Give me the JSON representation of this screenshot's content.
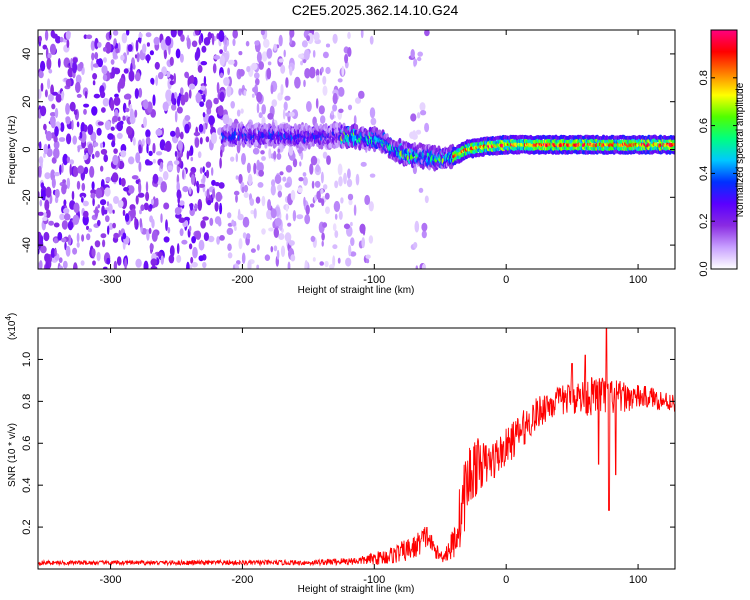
{
  "title": "C2E5.2025.362.14.10.G24",
  "chart_data": [
    {
      "type": "heatmap",
      "name": "spectrogram",
      "xlabel": "Height of straight line (km)",
      "ylabel": "Frequency (Hz)",
      "xlim": [
        -355,
        128
      ],
      "ylim": [
        -50,
        50
      ],
      "x_ticks": [
        -300,
        -200,
        -100,
        0,
        100
      ],
      "y_ticks": [
        -40,
        -20,
        0,
        20,
        40
      ],
      "colorbar": {
        "label": "Normalized spectral amplitude",
        "range": [
          0,
          1
        ],
        "ticks": [
          0.0,
          0.2,
          0.4,
          0.6,
          0.8
        ],
        "colors": [
          "#ffffff",
          "#c8a0ff",
          "#8a2be2",
          "#5a00ff",
          "#0030ff",
          "#00c8ff",
          "#00ff80",
          "#50ff00",
          "#ffff00",
          "#ff8000",
          "#ff0000",
          "#ff0080"
        ]
      },
      "ridge": [
        {
          "x": -215,
          "f": 6.0
        },
        {
          "x": -180,
          "f": 6.0
        },
        {
          "x": -150,
          "f": 5.5
        },
        {
          "x": -125,
          "f": 6.0
        },
        {
          "x": -110,
          "f": 5.0
        },
        {
          "x": -95,
          "f": 4.0
        },
        {
          "x": -85,
          "f": 0.0
        },
        {
          "x": -75,
          "f": -2.0
        },
        {
          "x": -60,
          "f": -3.0
        },
        {
          "x": -50,
          "f": -4.0
        },
        {
          "x": -40,
          "f": -3.0
        },
        {
          "x": -30,
          "f": 0.0
        },
        {
          "x": -20,
          "f": 1.0
        },
        {
          "x": 0,
          "f": 2.0
        },
        {
          "x": 40,
          "f": 2.0
        },
        {
          "x": 80,
          "f": 2.0
        },
        {
          "x": 128,
          "f": 2.0
        }
      ]
    },
    {
      "type": "line",
      "name": "snr",
      "xlabel": "Height of straight line (km)",
      "ylabel": "SNR (10 * v/v)",
      "y_scale_label": "(x10",
      "y_scale_exponent": "4",
      "y_scale_suffix": ")",
      "xlim": [
        -355,
        128
      ],
      "ylim": [
        0,
        1.15
      ],
      "x_ticks": [
        -300,
        -200,
        -100,
        0,
        100
      ],
      "y_ticks": [
        0.2,
        0.4,
        0.6,
        0.8,
        1.0
      ],
      "series": [
        {
          "name": "SNR",
          "color": "#ff0000",
          "x": [
            -355,
            -300,
            -200,
            -150,
            -110,
            -90,
            -70,
            -60,
            -55,
            -50,
            -45,
            -40,
            -35,
            -30,
            -25,
            -20,
            -15,
            -10,
            -5,
            0,
            10,
            20,
            30,
            40,
            50,
            60,
            70,
            80,
            90,
            100,
            110,
            120,
            128
          ],
          "values": [
            0.03,
            0.03,
            0.03,
            0.03,
            0.04,
            0.06,
            0.1,
            0.16,
            0.1,
            0.06,
            0.08,
            0.12,
            0.25,
            0.4,
            0.48,
            0.5,
            0.5,
            0.52,
            0.55,
            0.58,
            0.65,
            0.72,
            0.78,
            0.8,
            0.82,
            0.82,
            0.83,
            0.82,
            0.82,
            0.82,
            0.82,
            0.8,
            0.8
          ],
          "noise": [
            0.01,
            0.01,
            0.012,
            0.012,
            0.02,
            0.04,
            0.06,
            0.06,
            0.04,
            0.03,
            0.05,
            0.08,
            0.16,
            0.18,
            0.16,
            0.12,
            0.1,
            0.1,
            0.09,
            0.09,
            0.09,
            0.08,
            0.08,
            0.07,
            0.08,
            0.09,
            0.1,
            0.09,
            0.07,
            0.06,
            0.05,
            0.05,
            0.05
          ],
          "peaks": [
            {
              "x": 76,
              "y": 1.15
            },
            {
              "x": 60,
              "y": 1.02
            },
            {
              "x": 50,
              "y": 0.98
            }
          ],
          "dips": [
            {
              "x": 78,
              "y": 0.28
            },
            {
              "x": 70,
              "y": 0.5
            },
            {
              "x": 83,
              "y": 0.45
            }
          ]
        }
      ]
    }
  ]
}
